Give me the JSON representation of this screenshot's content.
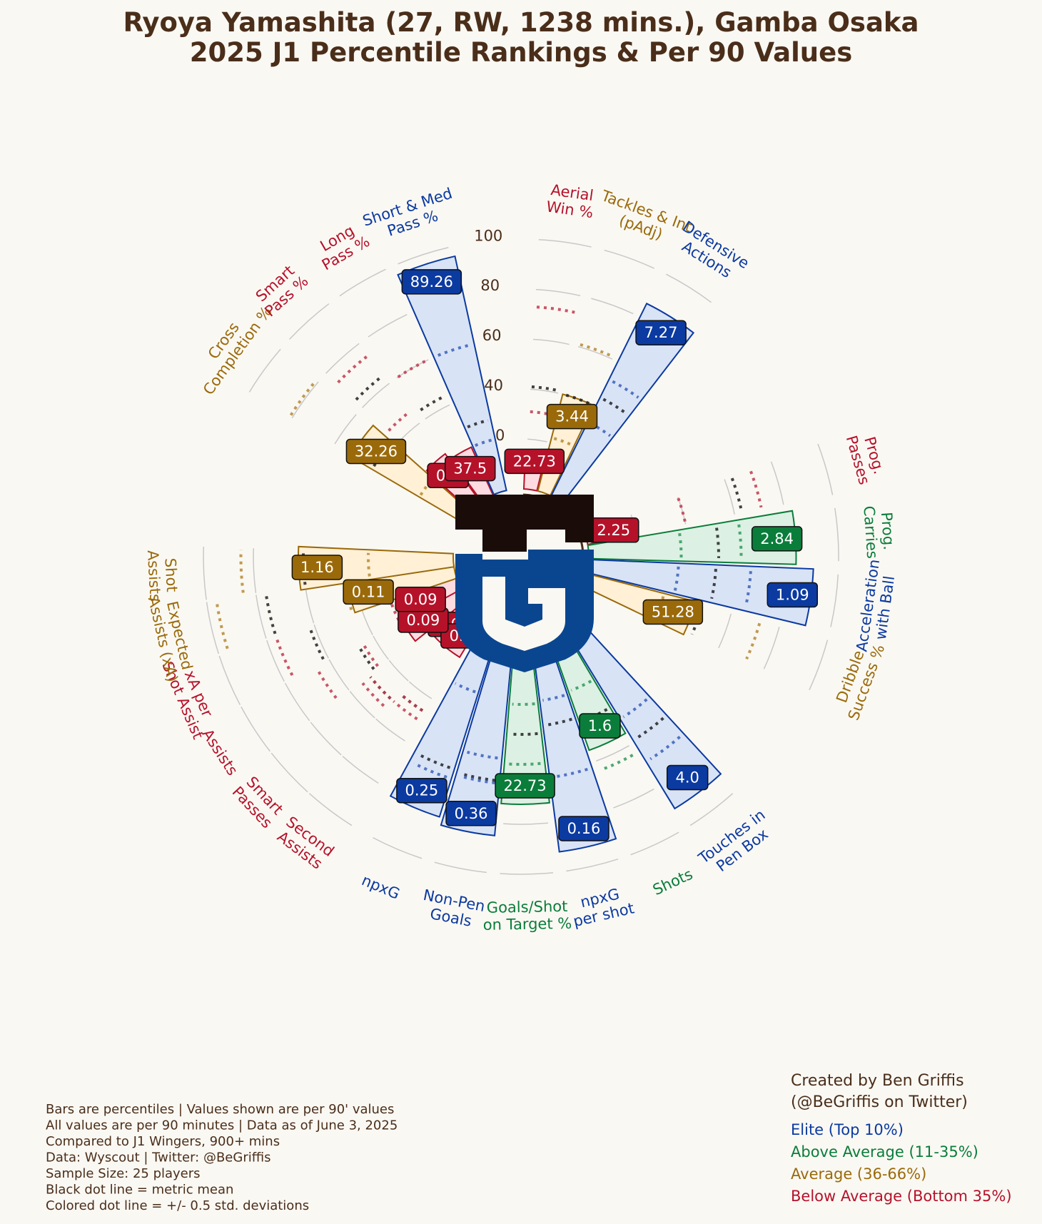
{
  "title": {
    "line1": "Ryoya Yamashita (27, RW, 1238 mins.), Gamba Osaka",
    "line2": "2025 J1 Percentile Rankings & Per 90 Values"
  },
  "colors": {
    "elite": "#0b3aa0",
    "above_average": "#0a7d3a",
    "average": "#9a6a0a",
    "below_average": "#b5122a",
    "text": "#4a2e1a",
    "background": "#faf8f3"
  },
  "logo": {
    "name": "gamba-osaka-crest"
  },
  "chart_data": {
    "type": "polar-bar",
    "radial_ticks": [
      "0",
      "20",
      "40",
      "60",
      "80",
      "100"
    ],
    "rlim": [
      0,
      100
    ],
    "grid": true,
    "metrics": [
      {
        "label": "Smart\nPasses",
        "value": "0.0",
        "percentile": 20,
        "tier": "below",
        "mean": 50,
        "sd_low": 50,
        "sd_high": 54
      },
      {
        "label": "Second\nAssists",
        "value": "0.0",
        "percentile": 20,
        "tier": "below",
        "mean": 46,
        "sd_low": 46,
        "sd_high": 50
      },
      {
        "label": "Assists",
        "value": "0.09",
        "percentile": 27,
        "tier": "below",
        "mean": 47,
        "sd_low": 45,
        "sd_high": 66
      },
      {
        "label": "xA per\nShot Assist",
        "value": "0.09",
        "percentile": 24,
        "tier": "below",
        "mean": 62,
        "sd_low": 28,
        "sd_high": 76
      },
      {
        "label": "Expected\nAssists (xA)",
        "value": "0.11",
        "percentile": 43,
        "tier": "average",
        "mean": 76,
        "sd_low": 44,
        "sd_high": 96
      },
      {
        "label": "Shot\nAssists",
        "value": "1.16",
        "percentile": 62,
        "tier": "average",
        "mean": 60,
        "sd_low": 34,
        "sd_high": 85
      },
      {
        "label": "Cross\nCompletion %",
        "value": "32.26",
        "percentile": 52,
        "tier": "average",
        "mean": 42,
        "sd_low": 20,
        "sd_high": 81
      },
      {
        "label": "Smart\nPass %",
        "value": "0.0",
        "percentile": 24,
        "tier": "below",
        "mean": 64,
        "sd_low": 46,
        "sd_high": 74
      },
      {
        "label": "Long\nPass %",
        "value": "37.5",
        "percentile": 21,
        "tier": "below",
        "mean": 44,
        "sd_low": 16,
        "sd_high": 60
      },
      {
        "label": "Short & Med\nPass %",
        "value": "89.26",
        "percentile": 96,
        "tier": "elite",
        "mean": 29,
        "sd_low": 21,
        "sd_high": 60
      },
      {
        "label": "Aerial\nWin %",
        "value": "22.73",
        "percentile": 12,
        "tier": "below",
        "mean": 41,
        "sd_low": 31,
        "sd_high": 73
      },
      {
        "label": "Tackles & Int\n(pAdj)",
        "value": "3.44",
        "percentile": 40,
        "tier": "average",
        "mean": 40,
        "sd_low": 22,
        "sd_high": 61
      },
      {
        "label": "Defensive\nActions",
        "value": "7.27",
        "percentile": 86,
        "tier": "elite",
        "mean": 44,
        "sd_low": 33,
        "sd_high": 52
      },
      {
        "label": "Prog.\nPasses",
        "value": "2.25",
        "percentile": 9,
        "tier": "below",
        "mean": 63,
        "sd_low": 40,
        "sd_high": 71
      },
      {
        "label": "Prog.\nCarries",
        "value": "2.84",
        "percentile": 83,
        "tier": "above",
        "mean": 52,
        "sd_low": 37,
        "sd_high": 61
      },
      {
        "label": "Acceleration\nwith Ball",
        "value": "1.09",
        "percentile": 90,
        "tier": "elite",
        "mean": 51,
        "sd_low": 36,
        "sd_high": 65
      },
      {
        "label": "Dribble\nSuccess %",
        "value": "51.28",
        "percentile": 45,
        "tier": "average",
        "mean": 48,
        "sd_low": 32,
        "sd_high": 72
      },
      {
        "label": "Touches in\nPen Box",
        "value": "4.0",
        "percentile": 91,
        "tier": "elite",
        "mean": 59,
        "sd_low": 49,
        "sd_high": 69
      },
      {
        "label": "Shots",
        "value": "1.6",
        "percentile": 55,
        "tier": "above",
        "mean": 43,
        "sd_low": 30,
        "sd_high": 64
      },
      {
        "label": "npxG\nper shot",
        "value": "0.16",
        "percentile": 92,
        "tier": "elite",
        "mean": 41,
        "sd_low": 31,
        "sd_high": 62
      },
      {
        "label": "Goals/Shot\non Target %",
        "value": "22.73",
        "percentile": 72,
        "tier": "above",
        "mean": 44,
        "sd_low": 32,
        "sd_high": 56
      },
      {
        "label": "Non-Pen\nGoals",
        "value": "0.36",
        "percentile": 85,
        "tier": "elite",
        "mean": 63,
        "sd_low": 54,
        "sd_high": 64
      },
      {
        "label": "npxG",
        "value": "0.25",
        "percentile": 82,
        "tier": "elite",
        "mean": 62,
        "sd_low": 30,
        "sd_high": 66
      }
    ]
  },
  "notes": [
    "Bars are percentiles | Values shown are per 90' values",
    "All values are per 90 minutes | Data as of June 3, 2025",
    "Compared to J1 Wingers, 900+ mins",
    "Data: Wyscout | Twitter: @BeGriffis",
    "Sample Size: 25 players",
    "Black dot line = metric mean",
    "Colored dot line = +/- 0.5 std. deviations"
  ],
  "credit": [
    "Created by Ben Griffis",
    "(@BeGriffis on Twitter)"
  ],
  "legend": [
    {
      "label": "Elite (Top 10%)",
      "tier": "elite"
    },
    {
      "label": "Above Average (11-35%)",
      "tier": "above"
    },
    {
      "label": "Average (36-66%)",
      "tier": "average"
    },
    {
      "label": "Below Average (Bottom 35%)",
      "tier": "below"
    }
  ]
}
